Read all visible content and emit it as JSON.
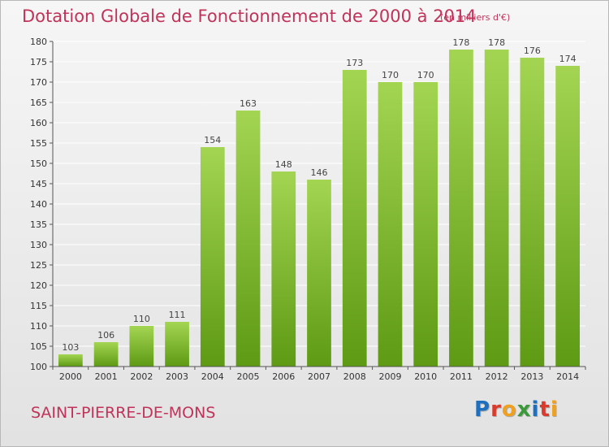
{
  "title": "Dotation Globale de Fonctionnement de 2000 à 2014",
  "subtitle": "(en milliers d'€)",
  "commune": "SAINT-PIERRE-DE-MONS",
  "logo": {
    "text": "Proxiti",
    "letters": [
      "P",
      "r",
      "o",
      "x",
      "i",
      "t",
      "i"
    ],
    "colors": [
      "#1f6fbf",
      "#d93a2b",
      "#f0a020",
      "#3a9a3a",
      "#1f6fbf",
      "#d93a2b",
      "#f0a020"
    ]
  },
  "colors": {
    "bar_light": "#a3d552",
    "bar_dark": "#5e9a14",
    "title": "#c0335a"
  },
  "chart_data": {
    "type": "bar",
    "title": "Dotation Globale de Fonctionnement de 2000 à 2014",
    "subtitle": "(en milliers d'€)",
    "categories": [
      "2000",
      "2001",
      "2002",
      "2003",
      "2004",
      "2005",
      "2006",
      "2007",
      "2008",
      "2009",
      "2010",
      "2011",
      "2012",
      "2013",
      "2014"
    ],
    "values": [
      103,
      106,
      110,
      111,
      154,
      163,
      148,
      146,
      173,
      170,
      170,
      178,
      178,
      176,
      174
    ],
    "data_labels": [
      "103",
      "106",
      "110",
      "111",
      "154",
      "163",
      "148",
      "146",
      "173",
      "170",
      "170",
      "178",
      "178",
      "176",
      "174"
    ],
    "xlabel": "",
    "ylabel": "",
    "ylim": [
      100,
      180
    ],
    "yticks": [
      "100",
      "105",
      "110",
      "115",
      "120",
      "125",
      "130",
      "135",
      "140",
      "145",
      "150",
      "155",
      "160",
      "165",
      "170",
      "175",
      "180"
    ],
    "grid": true,
    "legend": "none"
  }
}
